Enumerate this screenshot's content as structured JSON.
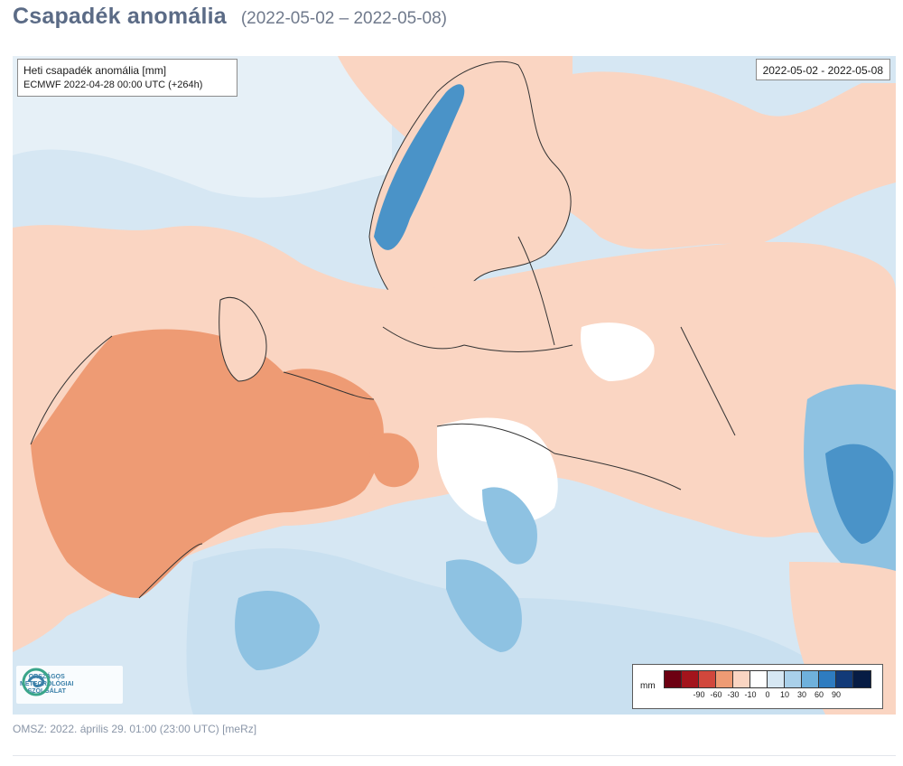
{
  "header": {
    "title": "Csapadék anomália",
    "date_range": "(2022-05-02 – 2022-05-08)"
  },
  "map": {
    "info_line1": "Heti csapadék anomália [mm]",
    "info_line2": "ECMWF 2022-04-28 00:00 UTC (+264h)",
    "valid_range": "2022-05-02 - 2022-05-08",
    "logo_text_1": "ORSZÁGOS",
    "logo_text_2": "METEOROLÓGIAI",
    "logo_text_3": "SZOLGÁLAT",
    "colors": {
      "ocean_light_blue": "#d6e7f3",
      "light_orange": "#fad5c2",
      "medium_orange": "#ee9b74",
      "light_blue": "#c9e0f0",
      "medium_blue": "#8ec2e2",
      "dark_blue": "#4a93c8",
      "white": "#ffffff",
      "border": "#333333"
    }
  },
  "legend": {
    "unit": "mm",
    "swatches": [
      "#6d0012",
      "#a3141c",
      "#d1473c",
      "#ee9b74",
      "#fad5c2",
      "#ffffff",
      "#d6e7f3",
      "#a9d0ea",
      "#6fb1dc",
      "#2e7cc0",
      "#123a78",
      "#071c44"
    ],
    "labels": [
      "-90",
      "-60",
      "-30",
      "-10",
      "0",
      "10",
      "30",
      "60",
      "90"
    ]
  },
  "footer": {
    "text": "OMSZ: 2022. április 29. 01:00 (23:00  UTC)  [meRz]"
  }
}
